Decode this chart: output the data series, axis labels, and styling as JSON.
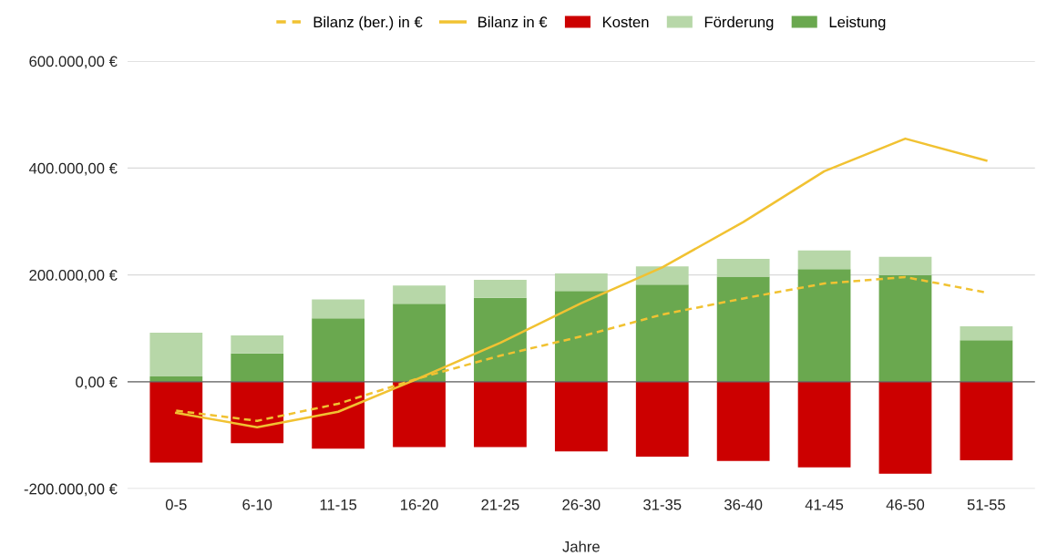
{
  "chart_data": {
    "type": "bar",
    "stacked": true,
    "xlabel": "Jahre",
    "categories": [
      "0-5",
      "6-10",
      "11-15",
      "16-20",
      "21-25",
      "26-30",
      "31-35",
      "36-40",
      "41-45",
      "46-50",
      "51-55"
    ],
    "series": [
      {
        "name": "Leistung",
        "color": "#6aa84f",
        "values": [
          10000,
          53000,
          119000,
          146000,
          157000,
          170000,
          182000,
          197000,
          211000,
          200000,
          78000
        ]
      },
      {
        "name": "Förderung",
        "color": "#b7d7a8",
        "values": [
          82000,
          34000,
          35000,
          34000,
          34000,
          33000,
          34000,
          33000,
          35000,
          34000,
          26000
        ]
      },
      {
        "name": "Kosten",
        "color": "#cc0000",
        "values": [
          -151000,
          -115000,
          -125000,
          -122000,
          -122000,
          -130000,
          -140000,
          -148000,
          -160000,
          -172000,
          -147000
        ]
      },
      {
        "name": "Bilanz (ber.) in €",
        "type": "line",
        "line_style": "dashed",
        "color": "#f1c232",
        "values": [
          -54000,
          -73000,
          -41000,
          7000,
          49000,
          85000,
          126000,
          156000,
          184000,
          196000,
          167000
        ]
      },
      {
        "name": "Bilanz in €",
        "type": "line",
        "line_style": "solid",
        "color": "#f1c232",
        "values": [
          -58000,
          -85000,
          -56000,
          7000,
          73000,
          147000,
          214000,
          299000,
          394000,
          455000,
          414000
        ]
      }
    ],
    "ylim": [
      -200000,
      600000
    ],
    "yticks": [
      {
        "value": -200000,
        "label": "-200.000,00 €"
      },
      {
        "value": 0,
        "label": "0,00 €"
      },
      {
        "value": 200000,
        "label": "200.000,00 €"
      },
      {
        "value": 400000,
        "label": "400.000,00 €"
      },
      {
        "value": 600000,
        "label": "600.000,00 €"
      }
    ],
    "grid": "y",
    "legend": "top",
    "marker": "none"
  }
}
